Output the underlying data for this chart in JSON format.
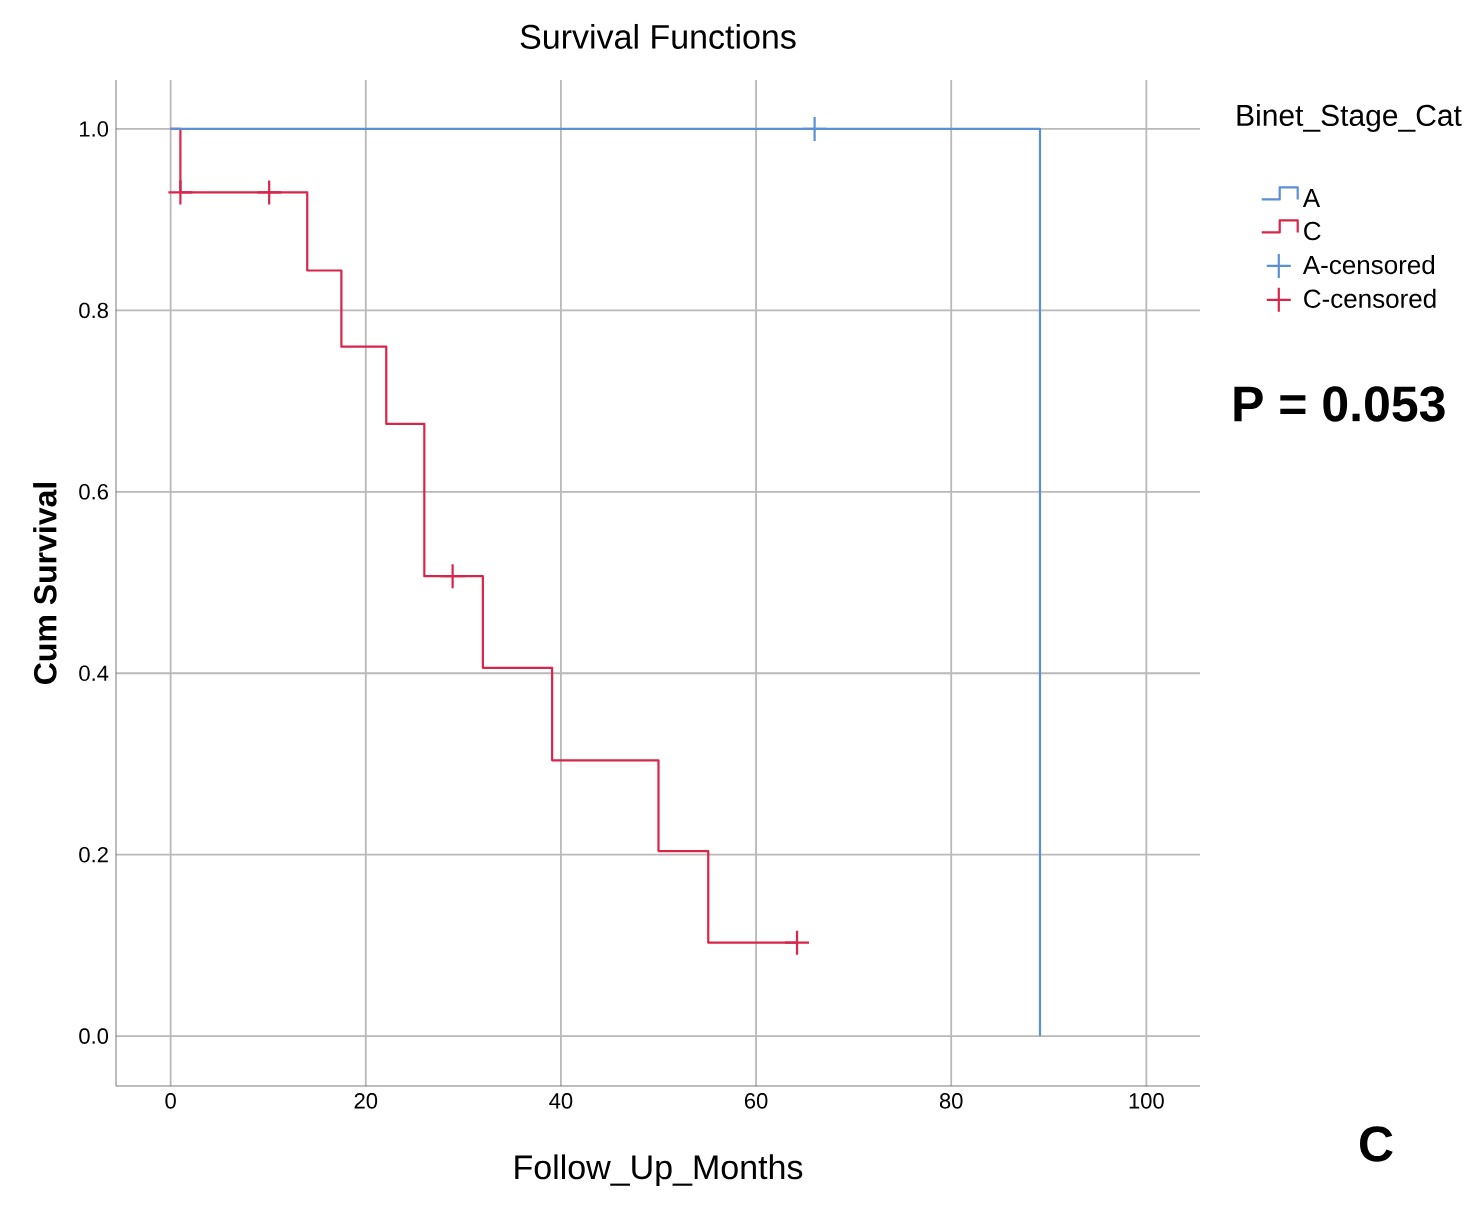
{
  "chart_data": {
    "type": "step",
    "title": "Survival Functions",
    "xlabel": "Follow_Up_Months",
    "ylabel": "Cum Survival",
    "legend_title": "Binet_Stage_Cat",
    "annotations": [
      "**P = 0.053**",
      "**C**"
    ],
    "series": [
      {
        "name": "A",
        "color": "#5b8fd6",
        "x": [
          0,
          89.1
        ],
        "values": [
          1.0,
          0.0
        ]
      },
      {
        "name": "C",
        "color": "#d8254a",
        "x": [
          0,
          1.0,
          14.0,
          17.5,
          22.1,
          26.0,
          32.0,
          39.1,
          50.0,
          55.1,
          64.2
        ],
        "values": [
          1.0,
          0.93,
          0.844,
          0.76,
          0.675,
          0.507,
          0.406,
          0.304,
          0.204,
          0.103,
          0.103
        ]
      },
      {
        "name": "A-censored",
        "type": "scatter",
        "marker": "cross",
        "color": "#5b8fd6",
        "x": [
          66.0
        ],
        "values": [
          1.0
        ]
      },
      {
        "name": "C-censored",
        "type": "scatter",
        "marker": "cross",
        "color": "#d8254a",
        "x": [
          1.0,
          10.1,
          28.9,
          64.2
        ],
        "values": [
          0.93,
          0.93,
          0.507,
          0.103
        ]
      }
    ],
    "xlim": [
      -5.6,
      105.5
    ],
    "ylim": [
      -0.055,
      1.054
    ],
    "xticks": [
      0,
      20,
      40,
      60,
      80,
      100
    ],
    "yticks": [
      {
        "value": 0,
        "label": "0.0"
      },
      {
        "value": 0.2,
        "label": "0.2"
      },
      {
        "value": 0.4,
        "label": "0.4"
      },
      {
        "value": 0.6,
        "label": "0.6"
      },
      {
        "value": 0.8,
        "label": "0.8"
      },
      {
        "value": 1.0,
        "label": "1.0"
      }
    ],
    "grid": true,
    "legend": "right"
  }
}
